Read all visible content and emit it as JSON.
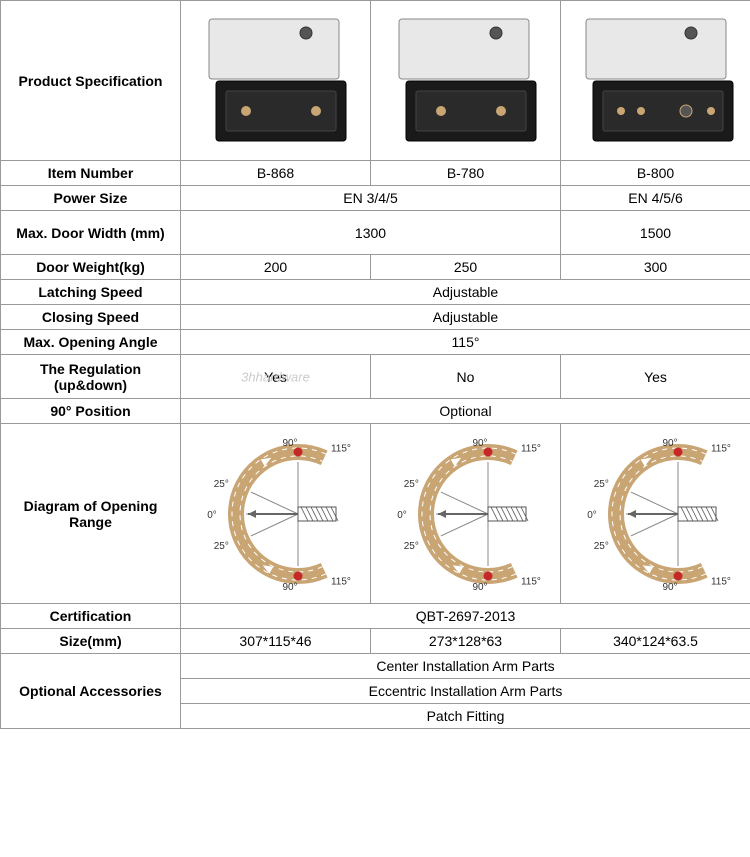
{
  "header_label": "Product Specification",
  "watermark": "3hhardware",
  "columns": [
    "B-868",
    "B-780",
    "B-800"
  ],
  "rows": {
    "item_number": {
      "label": "Item Number",
      "cells": [
        "B-868",
        "B-780",
        "B-800"
      ]
    },
    "power_size": {
      "label": "Power Size",
      "cells": [
        "EN 3/4/5",
        "EN 4/5/6"
      ],
      "spans": [
        2,
        1
      ]
    },
    "max_door_width": {
      "label": "Max. Door Width (mm)",
      "cells": [
        "1300",
        "1500"
      ],
      "spans": [
        2,
        1
      ]
    },
    "door_weight": {
      "label": "Door Weight(kg)",
      "cells": [
        "200",
        "250",
        "300"
      ]
    },
    "latching_speed": {
      "label": "Latching Speed",
      "cells": [
        "Adjustable"
      ],
      "spans": [
        3
      ]
    },
    "closing_speed": {
      "label": "Closing Speed",
      "cells": [
        "Adjustable"
      ],
      "spans": [
        3
      ]
    },
    "max_opening_angle": {
      "label": "Max. Opening Angle",
      "cells": [
        "115°"
      ],
      "spans": [
        3
      ]
    },
    "regulation": {
      "label": "The Regulation (up&down)",
      "cells": [
        "Yes",
        "No",
        "Yes"
      ]
    },
    "position_90": {
      "label": "90° Position",
      "cells": [
        "Optional"
      ],
      "spans": [
        3
      ]
    },
    "diagram": {
      "label": "Diagram of Opening Range"
    },
    "certification": {
      "label": "Certification",
      "cells": [
        "QBT-2697-2013"
      ],
      "spans": [
        3
      ]
    },
    "size": {
      "label": "Size(mm)",
      "cells": [
        "307*115*46",
        "273*128*63",
        "340*124*63.5"
      ]
    },
    "accessories": {
      "label": "Optional Accessories",
      "cells": [
        "Center Installation Arm Parts",
        "Eccentric Installation Arm Parts",
        "Patch Fitting"
      ]
    }
  },
  "product_image": {
    "cover_fill": "#e8e8e8",
    "cover_stroke": "#888",
    "body_fill": "#1a1a1a",
    "body_stroke": "#000",
    "ring_fill": "#555",
    "ring_stroke": "#333"
  },
  "diagram_style": {
    "arc_stroke": "#c9a574",
    "arc_width": 16,
    "inner_dash": "#ffffff",
    "dot_fill": "#c62828",
    "line_stroke": "#888",
    "arrow_stroke": "#666",
    "hatch_stroke": "#555",
    "label_color": "#333",
    "label_fontsize": 10,
    "angles": {
      "zero": "0°",
      "t25a": "25°",
      "t25b": "25°",
      "t90a": "90°",
      "t90b": "90°",
      "t115a": "115°",
      "t115b": "115°"
    }
  }
}
